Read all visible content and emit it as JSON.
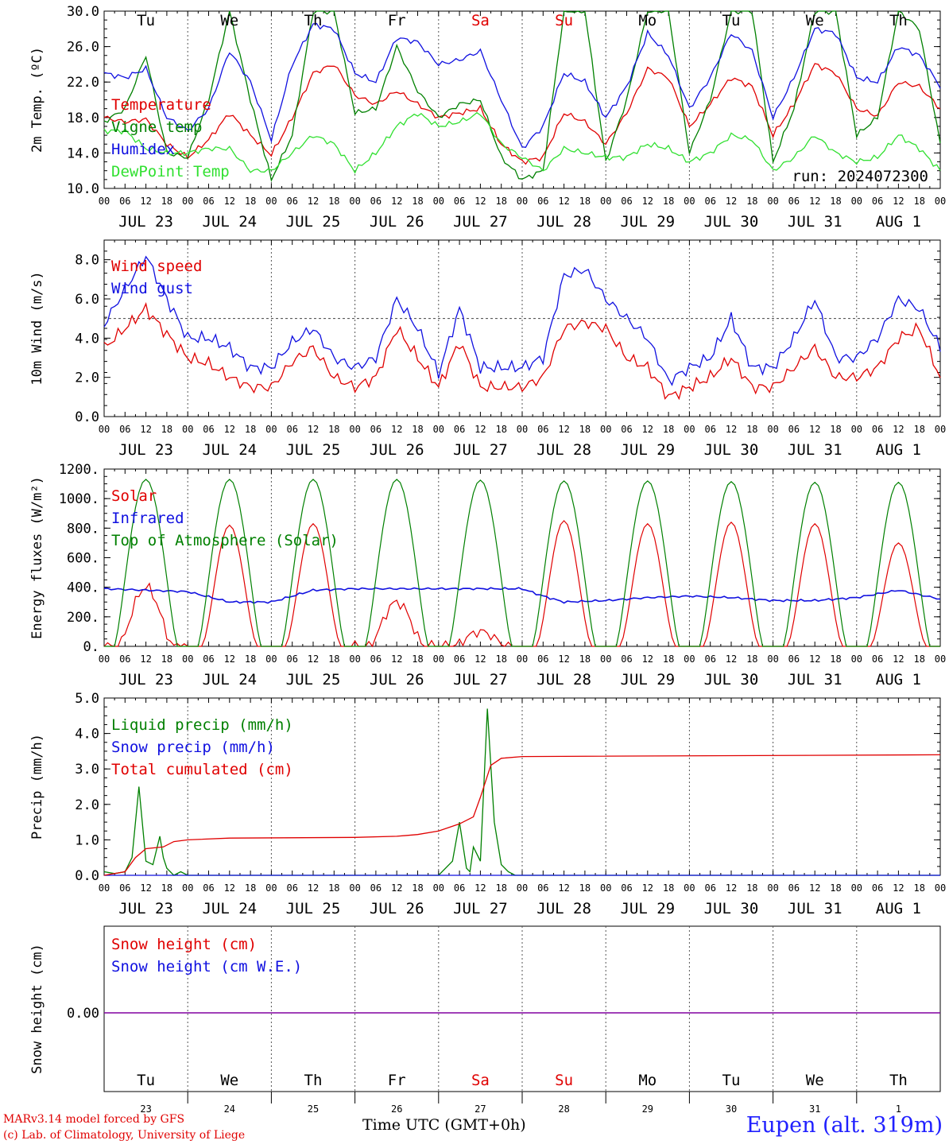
{
  "run_label": "run: 2024072300",
  "days": [
    "Tu",
    "We",
    "Th",
    "Fr",
    "Sa",
    "Su",
    "Mo",
    "Tu",
    "We",
    "Th"
  ],
  "weekend_days": [
    "Sa",
    "Su"
  ],
  "dates": [
    "JUL 23",
    "JUL 24",
    "JUL 25",
    "JUL 26",
    "JUL 27",
    "JUL 28",
    "JUL 29",
    "JUL 30",
    "JUL 31",
    "AUG  1"
  ],
  "date_numbers": [
    "23",
    "24",
    "25",
    "26",
    "27",
    "28",
    "29",
    "30",
    "31",
    "1"
  ],
  "hour_ticks": [
    "00",
    "06",
    "12",
    "18"
  ],
  "end_tick": "00",
  "x_title": "Time UTC (GMT+0h)",
  "credits": [
    "MARv3.14 model forced by GFS",
    "(c) Lab. of Climatology, University of Liege"
  ],
  "station": "Eupen (alt. 319m)",
  "colors": {
    "red": "#e00000",
    "green": "#008000",
    "blue": "#1010e0",
    "light_green": "#30e030",
    "purple": "#8000a0"
  },
  "chart_data": [
    {
      "type": "line",
      "ylabel": "2m Temp. (ºC)",
      "ylim": [
        10,
        30
      ],
      "yticks": [
        "10.0",
        "14.0",
        "18.0",
        "22.0",
        "26.0",
        "30.0"
      ],
      "grid": "dashed vertical lines at day boundaries",
      "legend_placement": "left",
      "series": [
        {
          "name": "Temperature",
          "color": "#e00000",
          "x_hours": [
            0,
            6,
            12,
            18,
            24,
            30,
            36,
            42,
            48,
            54,
            60,
            66,
            72,
            78,
            84,
            90,
            96,
            102,
            108,
            114,
            120,
            126,
            132,
            138,
            144,
            150,
            156,
            162,
            168,
            174,
            180,
            186,
            192,
            198,
            204,
            210,
            216,
            222,
            228,
            234,
            240
          ],
          "values": [
            18,
            17.5,
            17.8,
            15,
            13.5,
            15.5,
            18.5,
            16,
            13.8,
            18,
            23,
            24,
            20.5,
            19.5,
            21,
            19.5,
            18,
            18.5,
            19,
            15,
            13,
            13.5,
            18.5,
            17.5,
            15,
            18.5,
            23.5,
            22.5,
            17,
            19.5,
            22.5,
            21.5,
            16,
            19.5,
            24,
            23,
            19,
            18.2,
            22,
            21.5,
            19
          ]
        },
        {
          "name": "Vigne temp",
          "color": "#008000",
          "x_hours": [
            0,
            6,
            12,
            18,
            24,
            30,
            36,
            42,
            48,
            54,
            60,
            66,
            72,
            78,
            84,
            90,
            96,
            102,
            108,
            114,
            120,
            126,
            132,
            138,
            144,
            150,
            156,
            162,
            168,
            174,
            180,
            186,
            192,
            198,
            204,
            210,
            216,
            222,
            228,
            234,
            240
          ],
          "values": [
            17.5,
            19,
            25,
            14,
            13.5,
            20,
            30,
            20,
            11,
            16,
            30,
            30,
            18.5,
            19,
            26,
            21,
            18,
            19.5,
            20,
            13.5,
            11,
            12,
            30,
            30,
            13,
            20,
            30,
            30,
            14,
            20,
            30,
            30,
            13,
            19,
            30,
            30,
            16,
            18,
            30,
            28,
            15
          ]
        },
        {
          "name": "Humidex",
          "color": "#1010e0",
          "x_hours": [
            0,
            6,
            12,
            18,
            24,
            30,
            36,
            42,
            48,
            54,
            60,
            66,
            72,
            78,
            84,
            90,
            96,
            102,
            108,
            114,
            120,
            126,
            132,
            138,
            144,
            150,
            156,
            162,
            168,
            174,
            180,
            186,
            192,
            198,
            204,
            210,
            216,
            222,
            228,
            234,
            240
          ],
          "values": [
            23,
            22.5,
            23.5,
            18,
            16.5,
            19,
            25.5,
            22,
            15.5,
            24,
            28.5,
            28,
            23,
            22,
            27,
            26.5,
            24,
            24.5,
            25.5,
            20,
            14.5,
            17,
            23,
            22,
            18,
            21.5,
            27.5,
            25,
            19,
            22.5,
            27.5,
            25.5,
            18,
            22.5,
            28,
            27.5,
            22.5,
            22,
            26,
            25,
            21.5
          ]
        },
        {
          "name": "DewPoint Temp",
          "color": "#30e030",
          "x_hours": [
            0,
            6,
            12,
            18,
            24,
            30,
            36,
            42,
            48,
            54,
            60,
            66,
            72,
            78,
            84,
            90,
            96,
            102,
            108,
            114,
            120,
            126,
            132,
            138,
            144,
            150,
            156,
            162,
            168,
            174,
            180,
            186,
            192,
            198,
            204,
            210,
            216,
            222,
            228,
            234,
            240
          ],
          "values": [
            16.5,
            16.5,
            14.5,
            14,
            14,
            14.5,
            14.5,
            12,
            12,
            14,
            16,
            15,
            12,
            14,
            17,
            18.5,
            17,
            17.5,
            18.5,
            15,
            13.5,
            12,
            14.5,
            14,
            13.5,
            13.5,
            15,
            14.5,
            13,
            14,
            16,
            15.5,
            12,
            13.5,
            16,
            14,
            13,
            13.5,
            16,
            14.5,
            12
          ]
        }
      ]
    },
    {
      "type": "line",
      "ylabel": "10m Wind (m/s)",
      "ylim": [
        0,
        9
      ],
      "yticks": [
        "0.0",
        "2.0",
        "4.0",
        "6.0",
        "8.0"
      ],
      "reference_line": 5,
      "legend_placement": "left",
      "series": [
        {
          "name": "Wind speed",
          "color": "#e00000",
          "x_hours": [
            0,
            6,
            12,
            18,
            24,
            30,
            36,
            42,
            48,
            54,
            60,
            66,
            72,
            78,
            84,
            90,
            96,
            102,
            108,
            114,
            120,
            126,
            132,
            138,
            144,
            150,
            156,
            162,
            168,
            174,
            180,
            186,
            192,
            198,
            204,
            210,
            216,
            222,
            228,
            234,
            240
          ],
          "values": [
            3.5,
            4.5,
            5.5,
            4.2,
            3,
            2.7,
            2,
            1.5,
            1.5,
            2.8,
            3.5,
            2,
            1.5,
            2,
            4.5,
            3,
            1.5,
            3.8,
            1.5,
            1.5,
            1.5,
            2,
            4.5,
            4.8,
            4.5,
            3,
            2.5,
            1,
            1.5,
            2,
            3,
            1.5,
            1.5,
            2.5,
            3.5,
            2,
            2,
            2.5,
            4,
            4.5,
            2
          ]
        },
        {
          "name": "Wind gust",
          "color": "#1010e0",
          "x_hours": [
            0,
            6,
            12,
            18,
            24,
            30,
            36,
            42,
            48,
            54,
            60,
            66,
            72,
            78,
            84,
            90,
            96,
            102,
            108,
            114,
            120,
            126,
            132,
            138,
            144,
            150,
            156,
            162,
            168,
            174,
            180,
            186,
            192,
            198,
            204,
            210,
            216,
            222,
            228,
            234,
            240
          ],
          "values": [
            4.7,
            6.5,
            8.2,
            6,
            4,
            4,
            3.5,
            2.5,
            2.5,
            3.8,
            4.5,
            3,
            2.5,
            3,
            6,
            4.5,
            2.2,
            5.5,
            2.5,
            2.5,
            2.5,
            3,
            7.2,
            7.5,
            6,
            5,
            4,
            1.8,
            2.5,
            3,
            5,
            2.5,
            2.5,
            4,
            6,
            3,
            3,
            4,
            6,
            5.5,
            3.5
          ]
        }
      ]
    },
    {
      "type": "line",
      "ylabel": "Energy fluxes (W/m²)",
      "ylim": [
        0,
        1200
      ],
      "yticks": [
        "0.",
        "200.",
        "400.",
        "600.",
        "800.",
        "1000.",
        "1200."
      ],
      "legend_placement": "left",
      "series": [
        {
          "name": "Solar",
          "color": "#e00000",
          "daily_peak": [
            400,
            820,
            830,
            300,
            100,
            850,
            830,
            840,
            830,
            700
          ],
          "sunrise_hour": 4,
          "sunset_hour": 20
        },
        {
          "name": "Infrared",
          "color": "#1010e0",
          "x_hours": [
            0,
            12,
            24,
            36,
            48,
            60,
            72,
            84,
            96,
            108,
            120,
            126,
            132,
            144,
            156,
            168,
            180,
            192,
            204,
            216,
            228,
            240
          ],
          "values": [
            390,
            380,
            370,
            300,
            300,
            380,
            390,
            390,
            390,
            390,
            390,
            340,
            300,
            310,
            330,
            340,
            330,
            310,
            310,
            330,
            380,
            320
          ]
        },
        {
          "name": "Top of Atmosphere (Solar)",
          "color": "#008000",
          "daily_peak": [
            1130,
            1130,
            1130,
            1130,
            1125,
            1120,
            1120,
            1115,
            1110,
            1110
          ],
          "sunrise_hour": 3,
          "sunset_hour": 21
        }
      ]
    },
    {
      "type": "line",
      "ylabel": "Precip (mm/h)",
      "ylim": [
        0,
        5
      ],
      "yticks": [
        "0.0",
        "1.0",
        "2.0",
        "3.0",
        "4.0",
        "5.0"
      ],
      "legend_placement": "left",
      "series": [
        {
          "name": "Liquid precip (mm/h)",
          "color": "#008000",
          "x_hours": [
            0,
            3,
            6,
            8,
            10,
            12,
            14,
            16,
            17,
            18,
            20,
            22,
            24,
            96,
            100,
            102,
            104,
            105,
            106,
            108,
            110,
            112,
            114,
            116,
            118,
            120,
            240
          ],
          "values": [
            0.1,
            0.05,
            0.1,
            0.5,
            2.5,
            0.4,
            0.3,
            1.1,
            0.5,
            0.2,
            0,
            0.1,
            0,
            0,
            0.4,
            1.5,
            0.2,
            0.1,
            0.8,
            0.4,
            4.7,
            1.5,
            0.3,
            0.1,
            0,
            0,
            0
          ]
        },
        {
          "name": "Snow precip (mm/h)",
          "color": "#1010e0",
          "x_hours": [
            0,
            240
          ],
          "values": [
            0,
            0
          ]
        },
        {
          "name": "Total cumulated (cm)",
          "color": "#e00000",
          "x_hours": [
            0,
            6,
            9,
            12,
            17,
            20,
            24,
            36,
            72,
            84,
            90,
            96,
            102,
            106,
            108,
            111,
            114,
            120,
            240
          ],
          "values": [
            0,
            0.1,
            0.5,
            0.75,
            0.8,
            0.95,
            1.0,
            1.05,
            1.07,
            1.1,
            1.15,
            1.25,
            1.45,
            1.65,
            2.2,
            3.1,
            3.3,
            3.35,
            3.4
          ]
        }
      ]
    },
    {
      "type": "line",
      "ylabel": "Snow height (cm)",
      "yticks": [
        "0.00"
      ],
      "legend_placement": "left",
      "series": [
        {
          "name": "Snow height (cm)",
          "color": "#e00000",
          "x_hours": [
            0,
            240
          ],
          "values": [
            0,
            0
          ]
        },
        {
          "name": "Snow height (cm W.E.)",
          "color": "#1010e0",
          "x_hours": [
            0,
            240
          ],
          "values": [
            0,
            0
          ]
        }
      ]
    }
  ]
}
